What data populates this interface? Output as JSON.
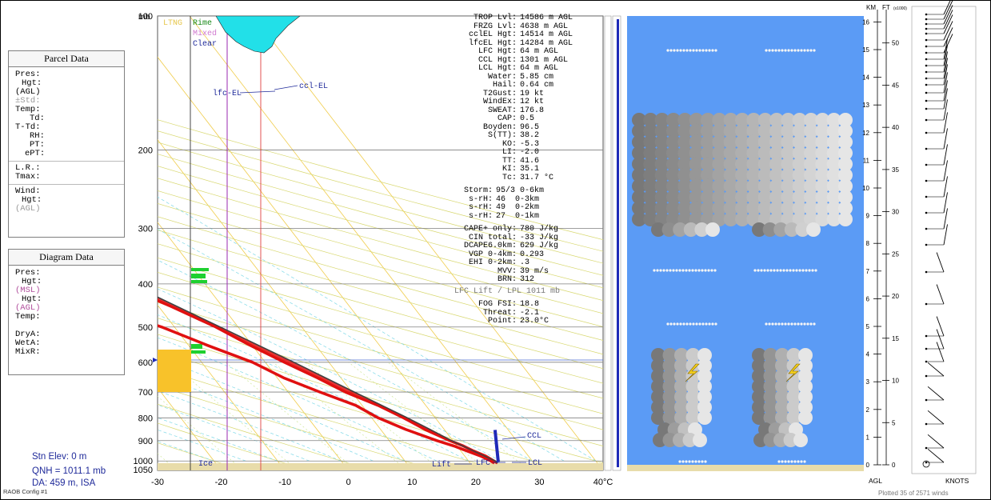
{
  "parcel_panel": {
    "title": "Parcel Data",
    "rows": [
      "Pres:",
      "Hgt:",
      "(AGL)",
      "±Std:",
      "Temp:",
      "Td:",
      "T-Td:",
      "RH:",
      "PT:",
      "ePT:"
    ],
    "rows2": [
      "L.R.:",
      "Tmax:"
    ],
    "rows3": [
      "Wind:",
      "Hgt:",
      "(AGL)"
    ]
  },
  "diagram_panel": {
    "title": "Diagram Data",
    "rows": [
      "Pres:",
      "Hgt:",
      "(MSL)",
      "Hgt:",
      "(AGL)",
      "Temp:"
    ],
    "rows2": [
      "DryA:",
      "WetA:",
      "MixR:"
    ]
  },
  "station": {
    "elev": "Stn Elev: 0 m",
    "qnh": "QNH = 1011.1 mb",
    "da": "DA: 459 m, ISA",
    "config": "RAOB Config #1"
  },
  "icing_legend": {
    "ltng": "LTNG",
    "rime": "Rime",
    "mixed": "Mixed",
    "clear": "Clear",
    "ice": "Ice"
  },
  "indices": {
    "block1": [
      [
        "TROP Lvl:",
        "14586 m AGL"
      ],
      [
        "FRZG Lvl:",
        "4638 m AGL"
      ],
      [
        "cclEL Hgt:",
        "14514 m AGL"
      ],
      [
        "lfcEL Hgt:",
        "14284 m AGL"
      ],
      [
        "LFC Hgt:",
        "64 m AGL"
      ],
      [
        "CCL Hgt:",
        "1301 m AGL"
      ],
      [
        "LCL Hgt:",
        "64 m AGL"
      ],
      [
        "Water:",
        "5.85 cm"
      ],
      [
        "Hail:",
        "0.64 cm"
      ],
      [
        "T2Gust:",
        "19 kt"
      ],
      [
        "WindEx:",
        "12 kt"
      ],
      [
        "SWEAT:",
        "176.8"
      ],
      [
        "CAP:",
        "0.5"
      ],
      [
        "Boyden:",
        "96.5"
      ],
      [
        "S(TT):",
        "38.2"
      ],
      [
        "KO:",
        "-5.3"
      ],
      [
        "LI:",
        "-2.0"
      ],
      [
        "TT:",
        "41.6"
      ],
      [
        "KI:",
        "35.1"
      ],
      [
        "Tc:",
        "31.7 °C"
      ]
    ],
    "block2": [
      [
        "Storm:",
        "95/3 0-6km"
      ],
      [
        "s-rH:",
        "46  0-3km"
      ],
      [
        "s-rH:",
        "49  0-2km"
      ],
      [
        "s-rH:",
        "27  0-1km"
      ]
    ],
    "block3": [
      [
        "CAPE+ only:",
        "780 J/kg"
      ],
      [
        "CIN total:",
        "-33 J/kg"
      ],
      [
        "DCAPE6.0km:",
        "629 J/kg"
      ],
      [
        "VGP 0-4km:",
        "0.293"
      ],
      [
        "EHI 0-2km:",
        ".3"
      ],
      [
        "MVV:",
        "39 m/s"
      ],
      [
        "BRN:",
        "312"
      ]
    ],
    "lift_note": "LFC Lift / LPL 1011 mb",
    "block4": [
      [
        "FOG FSI:",
        "18.8"
      ],
      [
        "Threat:",
        "-2.1"
      ],
      [
        "Point:",
        "23.0°C"
      ]
    ]
  },
  "height_axis": {
    "km_label": "KM",
    "ft_label": "FT",
    "ft_unit": "(x1000)",
    "km_ticks": [
      "0",
      "1",
      "2",
      "3",
      "4",
      "5",
      "6",
      "7",
      "8",
      "9",
      "10",
      "11",
      "12",
      "13",
      "14",
      "15",
      "16"
    ],
    "ft_ticks": [
      "0",
      "5",
      "10",
      "15",
      "20",
      "25",
      "30",
      "35",
      "40",
      "45",
      "50"
    ],
    "agl_label": "AGL",
    "knots_label": "KNOTS"
  },
  "plotted_note": "Plotted 35 of 2571 winds",
  "colors": {
    "temp_trace": "#e01010",
    "parcel": "#404040",
    "isobar": "#7f7f7f",
    "isotherm": "#f0cc4a",
    "dry_adiabat": "#d8d870",
    "moist_adiabat": "#7fd9e8",
    "mix_ratio": "#cfe89a",
    "cloud_bg": "#5b9bf5",
    "icing": "#22e0e8",
    "ground": "#e8dcaa",
    "wind_bar": "#1f2ab8"
  },
  "chart_data": {
    "type": "line",
    "title": "",
    "y_unit": "mb",
    "x_unit": "°C",
    "xlim": [
      -30,
      40
    ],
    "ylim": [
      1050,
      100
    ],
    "x_ticks": [
      "-30",
      "-20",
      "-10",
      "0",
      "10",
      "20",
      "30",
      "40°C"
    ],
    "y_ticks": [
      100,
      200,
      300,
      400,
      500,
      600,
      700,
      800,
      900,
      1000,
      1050
    ],
    "temperature": [
      [
        1011,
        24.3
      ],
      [
        1000,
        24.0
      ],
      [
        975,
        23.3
      ],
      [
        950,
        22.0
      ],
      [
        925,
        21.0
      ],
      [
        900,
        19.5
      ],
      [
        850,
        17.0
      ],
      [
        800,
        15.0
      ],
      [
        750,
        12.5
      ],
      [
        700,
        9.0
      ],
      [
        650,
        6.3
      ],
      [
        600,
        3.0
      ],
      [
        550,
        -0.3
      ],
      [
        500,
        -3.5
      ],
      [
        450,
        -8.0
      ],
      [
        400,
        -13.5
      ],
      [
        350,
        -20.0
      ],
      [
        300,
        -27.5
      ],
      [
        250,
        -37.0
      ],
      [
        200,
        -47.5
      ],
      [
        175,
        -52.5
      ],
      [
        150,
        -58.5
      ],
      [
        135,
        -62.5
      ],
      [
        120,
        -64.5
      ],
      [
        108,
        -62.0
      ],
      [
        100,
        -58.5
      ]
    ],
    "dewpoint": [
      [
        1011,
        23.8
      ],
      [
        1000,
        23.5
      ],
      [
        975,
        22.5
      ],
      [
        950,
        21.0
      ],
      [
        925,
        19.5
      ],
      [
        900,
        17.5
      ],
      [
        850,
        14.0
      ],
      [
        800,
        11.0
      ],
      [
        750,
        9.0
      ],
      [
        700,
        5.0
      ],
      [
        650,
        1.0
      ],
      [
        600,
        -2.0
      ],
      [
        550,
        -7.0
      ],
      [
        500,
        -12.0
      ],
      [
        450,
        -19.0
      ],
      [
        400,
        -22.0
      ],
      [
        350,
        -26.0
      ],
      [
        300,
        -31.0
      ],
      [
        250,
        -39.5
      ],
      [
        200,
        -50.5
      ],
      [
        175,
        -56.0
      ],
      [
        150,
        -62.0
      ],
      [
        130,
        -70.0
      ],
      [
        110,
        -76.0
      ],
      [
        100,
        -77.5
      ]
    ],
    "parcel": [
      [
        1011,
        24.3
      ],
      [
        1000,
        24.2
      ],
      [
        950,
        22.0
      ],
      [
        900,
        19.8
      ],
      [
        850,
        17.8
      ],
      [
        800,
        15.6
      ],
      [
        700,
        10.4
      ],
      [
        600,
        4.5
      ],
      [
        500,
        -2.8
      ],
      [
        400,
        -11.8
      ],
      [
        300,
        -25.8
      ],
      [
        250,
        -34.5
      ],
      [
        200,
        -45.6
      ],
      [
        160,
        -55.0
      ],
      [
        150,
        -57.8
      ]
    ],
    "annotations": [
      "ccl-EL",
      "lfc-EL",
      "CCL",
      "LFC",
      "LCL",
      "Lift"
    ],
    "height_axis_units": [
      "KM",
      "FT (x1000)"
    ]
  }
}
